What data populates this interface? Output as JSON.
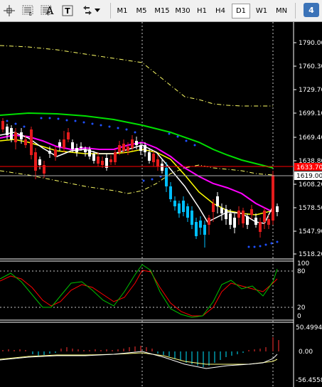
{
  "toolbar": {
    "icons": [
      "crosshair-icon",
      "line-e-icon",
      "line-f-icon",
      "text-label-icon",
      "text-box-icon",
      "arrows-icon",
      "dropdown-arrow-icon"
    ],
    "icon_letters": {
      "e": "E",
      "f": "F",
      "a": "A",
      "t": "T"
    },
    "timeframes": [
      "M1",
      "M5",
      "M15",
      "M30",
      "H1",
      "H4",
      "D1",
      "W1",
      "MN"
    ],
    "active_timeframe": "D1",
    "badge": "4"
  },
  "price_scale": {
    "labels": [
      "1790.00",
      "1760.30",
      "1729.70",
      "1699.10",
      "1669.40",
      "1638.80",
      "1608.20",
      "1578.50",
      "1547.90",
      "1518.20"
    ],
    "current_price_label": "1619.00",
    "hidden_price_label": "1633.70"
  },
  "stochastic": {
    "levels": [
      "100",
      "80",
      "20",
      "0"
    ]
  },
  "macd": {
    "labels": [
      "50.4994",
      "0.00",
      "-56.4558"
    ]
  },
  "colors": {
    "background": "#000000",
    "bull_candle": "#ffffff",
    "bull_candle_alt": "#00bfff",
    "bear_candle": "#e41c1c",
    "ma_fast": "#ffffff",
    "ma_mid": "#ffff00",
    "ma_slow_magenta": "#ff00ff",
    "ma_long_green": "#00e000",
    "sar_dots": "#1e50ff",
    "envelope": "#ffff66",
    "current_price_line": "#b0b0b0",
    "ask_line": "#ff0000",
    "stoch_main": "#00c000",
    "stoch_signal": "#ff0000",
    "macd_hist": "#ff3030",
    "macd_hist_neg": "#00e5ff"
  }
}
